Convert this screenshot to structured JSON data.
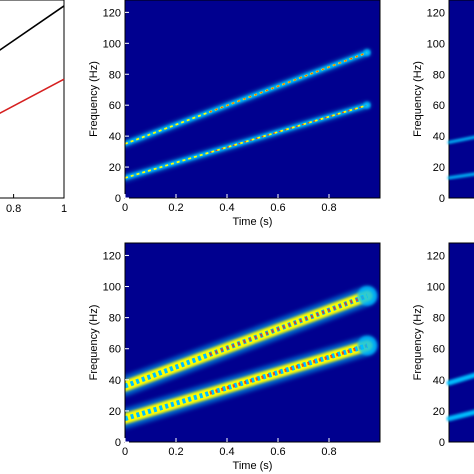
{
  "colors": {
    "background": "#00008f",
    "ridge_low": "#00bfff",
    "ridge_mid": "#ffff00",
    "ridge_high": "#ff2a00",
    "line_black": "#000000",
    "line_red": "#d62020"
  },
  "chart_data": [
    {
      "id": "left-partial-line-plot",
      "type": "line",
      "x_tick_labels": [
        "0.8",
        "1"
      ],
      "series": [
        {
          "color": "#000000",
          "x": [
            0.6,
            1.0
          ],
          "y": [
            0.62,
            0.97
          ]
        },
        {
          "color": "#d62020",
          "x": [
            0.6,
            1.0
          ],
          "y": [
            0.33,
            0.6
          ]
        }
      ]
    },
    {
      "id": "spectrogram-top",
      "type": "heatmap",
      "xlabel": "Time (s)",
      "ylabel": "Frequency (Hz)",
      "xlim": [
        0,
        1
      ],
      "ylim": [
        0,
        128
      ],
      "x_ticks": [
        0,
        0.2,
        0.4,
        0.6,
        0.8
      ],
      "y_ticks": [
        0,
        20,
        40,
        60,
        80,
        100,
        120
      ],
      "series": [
        {
          "x": [
            0.0,
            0.95
          ],
          "y": [
            35,
            94
          ],
          "width_hz": 2.5
        },
        {
          "x": [
            0.0,
            0.95
          ],
          "y": [
            13,
            60
          ],
          "width_hz": 2.5
        }
      ]
    },
    {
      "id": "spectrogram-bottom",
      "type": "heatmap",
      "xlabel": "Time (s)",
      "ylabel": "Frequency (Hz)",
      "xlim": [
        0,
        1
      ],
      "ylim": [
        0,
        128
      ],
      "x_ticks": [
        0,
        0.2,
        0.4,
        0.6,
        0.8
      ],
      "y_ticks": [
        0,
        20,
        40,
        60,
        80,
        100,
        120
      ],
      "series": [
        {
          "x": [
            0.0,
            0.95
          ],
          "y": [
            36,
            94
          ],
          "width_hz": 7
        },
        {
          "x": [
            0.0,
            0.95
          ],
          "y": [
            15,
            62
          ],
          "width_hz": 7
        }
      ]
    },
    {
      "id": "spectrogram-right-top-partial",
      "type": "heatmap",
      "ylabel": "Frequency (Hz)",
      "y_ticks": [
        0,
        20,
        40,
        60,
        80,
        100,
        120
      ]
    },
    {
      "id": "spectrogram-right-bottom-partial",
      "type": "heatmap",
      "ylabel": "Frequency (Hz)",
      "y_ticks": [
        0,
        20,
        40,
        60,
        80,
        100,
        120
      ]
    }
  ]
}
